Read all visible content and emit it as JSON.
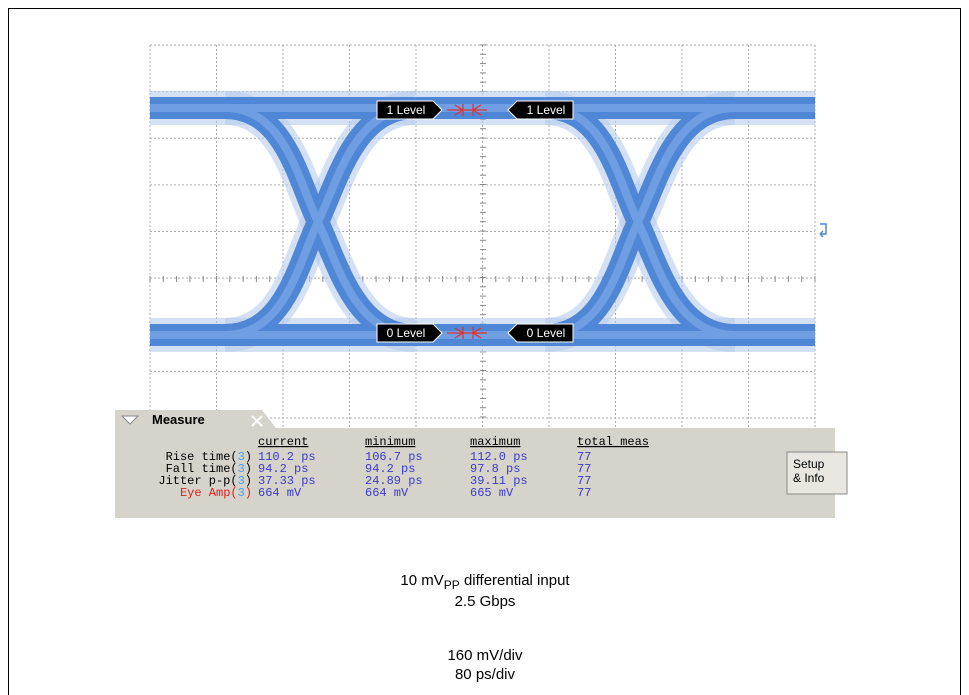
{
  "scope": {
    "markers": [
      {
        "label": "1 Level"
      },
      {
        "label": "1 Level"
      },
      {
        "label": "0 Level"
      },
      {
        "label": "0 Level"
      }
    ]
  },
  "measure": {
    "title": "Measure",
    "headers": [
      "current",
      "minimum",
      "maximum",
      "total meas"
    ],
    "rows": [
      {
        "prefix": "Rise time(",
        "channel": "3",
        "suffix": ")",
        "cells": [
          "110.2 ps",
          "106.7 ps",
          "112.0 ps",
          "77"
        ]
      },
      {
        "prefix": "Fall time(",
        "channel": "3",
        "suffix": ")",
        "cells": [
          "94.2 ps",
          "94.2 ps",
          "97.8 ps",
          "77"
        ]
      },
      {
        "prefix": "Jitter p-p(",
        "channel": "3",
        "suffix": ")",
        "cells": [
          "37.33 ps",
          "24.89 ps",
          "39.11 ps",
          "77"
        ]
      },
      {
        "prefix": "Eye Amp(",
        "channel": "3",
        "suffix": ")",
        "cells": [
          "664 mV",
          "664 mV",
          "665 mV",
          "77"
        ]
      }
    ],
    "button": [
      "Setup",
      "& Info"
    ]
  },
  "caption": {
    "main": "10 mV",
    "sub": "PP",
    "rest": " differential input",
    "lines": [
      "2.5 Gbps",
      "160 mV/div",
      "80 ps/div"
    ]
  }
}
